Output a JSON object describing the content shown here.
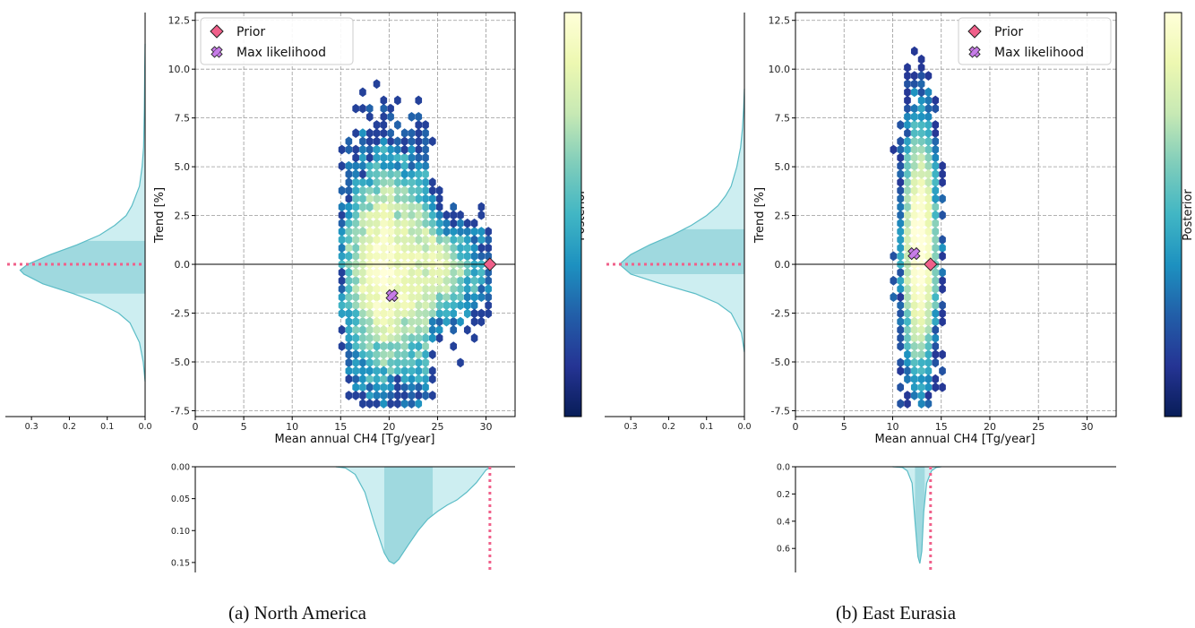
{
  "colors": {
    "prior": "#f0608a",
    "max_likelihood": "#c77ce8",
    "marginal_fill": "#cdeef1",
    "marginal_hdi": "#9fd9df",
    "marginal_line": "#5bbcc6",
    "colormap": [
      "#081d58",
      "#253494",
      "#225ea8",
      "#1d91c0",
      "#41b6c4",
      "#7fcdbb",
      "#c7e9b4",
      "#edf8b1",
      "#ffffd9"
    ]
  },
  "chart_data": [
    {
      "type": "heatmap",
      "caption": "(a) North America",
      "xlabel": "Mean annual CH4 [Tg/year]",
      "ylabel": "Trend [%]",
      "colorbar_label": "Posterior",
      "xlim": [
        0,
        33
      ],
      "ylim": [
        -7.8,
        12.9
      ],
      "xticks": [
        0,
        5,
        10,
        15,
        20,
        25,
        30
      ],
      "yticks": [
        -7.5,
        -5.0,
        -2.5,
        0.0,
        2.5,
        5.0,
        7.5,
        10.0,
        12.5
      ],
      "grid": true,
      "legend": {
        "placement": "top-left",
        "entries": [
          "Prior",
          "Max likelihood"
        ]
      },
      "prior": {
        "x": 30.4,
        "y": 0.0
      },
      "max_likelihood": {
        "x": 20.3,
        "y": -1.6
      },
      "posterior_samples": {
        "x_mean": 20.3,
        "x_sd": 2.3,
        "y_mean": -0.3,
        "y_sd": 2.3,
        "x_skew_right": 3.5,
        "x_min": 15,
        "x_max": 30.5
      },
      "trend_marginal": {
        "axis_ticks": [
          0.3,
          0.2,
          0.1,
          0.0
        ],
        "axis_max": 0.35,
        "hdi": [
          -1.5,
          1.2
        ],
        "y": [
          -6.0,
          -5.0,
          -4.0,
          -3.0,
          -2.5,
          -2.0,
          -1.5,
          -1.0,
          -0.5,
          -0.3,
          0.0,
          0.5,
          1.0,
          1.5,
          2.0,
          2.5,
          3.0,
          4.0,
          5.0,
          6.0,
          8.0,
          10.0,
          11.3
        ],
        "density": [
          0.0,
          0.005,
          0.015,
          0.04,
          0.07,
          0.12,
          0.19,
          0.27,
          0.32,
          0.33,
          0.31,
          0.25,
          0.18,
          0.12,
          0.08,
          0.05,
          0.035,
          0.015,
          0.008,
          0.004,
          0.002,
          0.001,
          0.0
        ]
      },
      "emission_marginal": {
        "axis_ticks": [
          0.0,
          0.05,
          0.1,
          0.15
        ],
        "axis_tick_labels": [
          "0.00",
          "0.05",
          "0.10",
          "0.15"
        ],
        "axis_max": 0.16,
        "hdi": [
          19.5,
          24.5
        ],
        "x": [
          14.5,
          15.5,
          16.5,
          17.5,
          18.5,
          19.5,
          20.0,
          20.5,
          21.0,
          22.0,
          23.0,
          24.0,
          25.0,
          26.0,
          27.0,
          28.0,
          29.0,
          30.0,
          30.5
        ],
        "density": [
          0.0,
          0.002,
          0.012,
          0.04,
          0.09,
          0.135,
          0.148,
          0.152,
          0.145,
          0.122,
          0.1,
          0.082,
          0.07,
          0.06,
          0.052,
          0.04,
          0.025,
          0.005,
          0.0
        ]
      }
    },
    {
      "type": "heatmap",
      "caption": "(b) East Eurasia",
      "xlabel": "Mean annual CH4 [Tg/year]",
      "ylabel": "Trend [%]",
      "colorbar_label": "Posterior",
      "xlim": [
        0,
        33
      ],
      "ylim": [
        -7.8,
        12.9
      ],
      "xticks": [
        0,
        5,
        10,
        15,
        20,
        25,
        30
      ],
      "yticks": [
        -7.5,
        -5.0,
        -2.5,
        0.0,
        2.5,
        5.0,
        7.5,
        10.0,
        12.5
      ],
      "grid": true,
      "legend": {
        "placement": "top-right",
        "entries": [
          "Prior",
          "Max likelihood"
        ]
      },
      "prior": {
        "x": 13.9,
        "y": 0.0
      },
      "max_likelihood": {
        "x": 12.2,
        "y": 0.55
      },
      "posterior_samples": {
        "x_mean": 12.8,
        "x_sd": 0.75,
        "y_mean": 0.8,
        "y_sd": 2.4,
        "x_skew_right": 0,
        "x_min": 10,
        "x_max": 15
      },
      "trend_marginal": {
        "axis_ticks": [
          0.3,
          0.2,
          0.1,
          0.0
        ],
        "axis_max": 0.35,
        "hdi": [
          -0.5,
          1.8
        ],
        "y": [
          -4.5,
          -3.5,
          -2.5,
          -2.0,
          -1.5,
          -1.0,
          -0.5,
          0.0,
          0.5,
          1.0,
          1.5,
          2.0,
          2.5,
          3.0,
          3.5,
          4.0,
          5.0,
          6.0,
          7.0,
          8.0,
          9.0
        ],
        "density": [
          0.0,
          0.008,
          0.035,
          0.07,
          0.13,
          0.22,
          0.3,
          0.33,
          0.3,
          0.25,
          0.19,
          0.14,
          0.1,
          0.07,
          0.05,
          0.035,
          0.02,
          0.01,
          0.005,
          0.002,
          0.0
        ]
      },
      "emission_marginal": {
        "axis_ticks": [
          0.0,
          0.2,
          0.4,
          0.6
        ],
        "axis_tick_labels": [
          "0.0",
          "0.2",
          "0.4",
          "0.6"
        ],
        "axis_max": 0.75,
        "hdi": [
          12.3,
          13.3
        ],
        "x": [
          10.0,
          11.0,
          11.5,
          12.0,
          12.3,
          12.6,
          12.8,
          13.0,
          13.2,
          13.5,
          14.0,
          14.5,
          15.0
        ],
        "density": [
          0.0,
          0.005,
          0.03,
          0.12,
          0.4,
          0.66,
          0.71,
          0.62,
          0.33,
          0.12,
          0.03,
          0.005,
          0.0
        ]
      }
    }
  ]
}
